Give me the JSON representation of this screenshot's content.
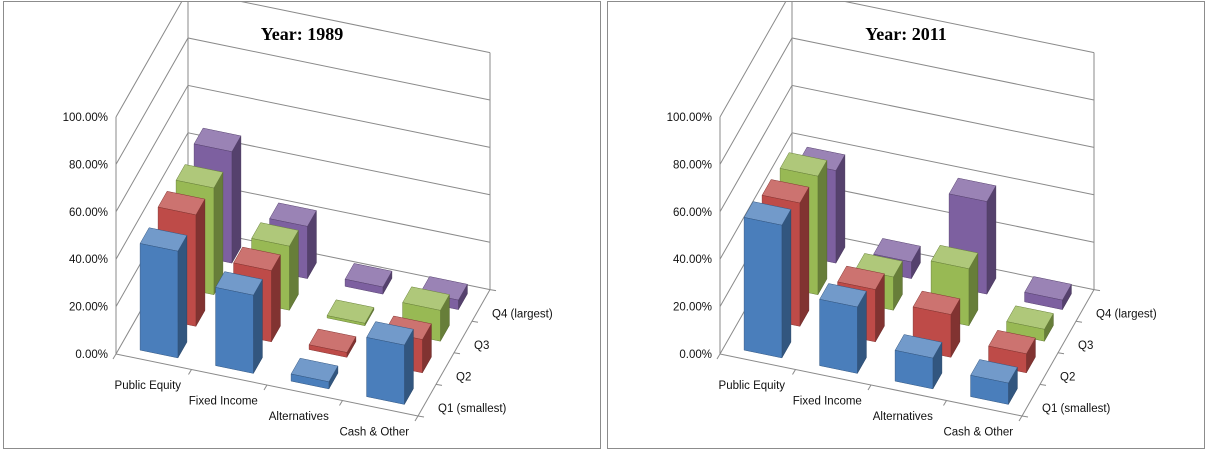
{
  "chart_data": [
    {
      "type": "bar",
      "subtype": "3d-column",
      "title": "Year: 1989",
      "categories": [
        "Public Equity",
        "Fixed Income",
        "Alternatives",
        "Cash & Other"
      ],
      "series": [
        {
          "name": "Q1 (smallest)",
          "values": [
            45,
            33,
            3,
            25
          ]
        },
        {
          "name": "Q2",
          "values": [
            47,
            30,
            2,
            14
          ]
        },
        {
          "name": "Q3",
          "values": [
            45,
            27,
            1,
            13
          ]
        },
        {
          "name": "Q4 (largest)",
          "values": [
            47,
            22,
            3,
            4
          ]
        }
      ],
      "y_ticks": [
        "0.00%",
        "20.00%",
        "40.00%",
        "60.00%",
        "80.00%",
        "100.00%"
      ],
      "ylim": [
        0,
        100
      ],
      "grid": true,
      "colors": [
        "#4a7ebb",
        "#be4b48",
        "#98b954",
        "#7d60a0"
      ]
    },
    {
      "type": "bar",
      "subtype": "3d-column",
      "title": "Year: 2011",
      "categories": [
        "Public Equity",
        "Fixed Income",
        "Alternatives",
        "Cash & Other"
      ],
      "series": [
        {
          "name": "Q1 (smallest)",
          "values": [
            56,
            28,
            13,
            9
          ]
        },
        {
          "name": "Q2",
          "values": [
            52,
            22,
            18,
            8
          ]
        },
        {
          "name": "Q3",
          "values": [
            50,
            14,
            24,
            5
          ]
        },
        {
          "name": "Q4 (largest)",
          "values": [
            39,
            7,
            39,
            4
          ]
        }
      ],
      "y_ticks": [
        "0.00%",
        "20.00%",
        "40.00%",
        "60.00%",
        "80.00%",
        "100.00%"
      ],
      "ylim": [
        0,
        100
      ],
      "grid": true,
      "colors": [
        "#4a7ebb",
        "#be4b48",
        "#98b954",
        "#7d60a0"
      ]
    }
  ]
}
